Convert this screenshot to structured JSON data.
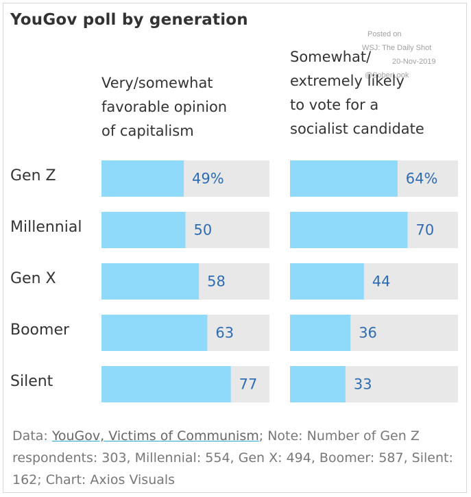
{
  "header": {
    "title": "YouGov poll by generation"
  },
  "watermark": {
    "line1": "Posted on",
    "line2": "WSJ: The Daily Shot",
    "line3": "20-Nov-2019",
    "line4": "@SoberLook"
  },
  "chart_data": {
    "type": "bar",
    "orientation": "horizontal",
    "categories": [
      "Gen Z",
      "Millennial",
      "Gen X",
      "Boomer",
      "Silent"
    ],
    "xlim": [
      0,
      100
    ],
    "series": [
      {
        "name": "Very/somewhat favorable opinion of capitalism",
        "title_lines": [
          "Very/somewhat",
          "favorable opinion",
          "of capitalism"
        ],
        "values": [
          49,
          50,
          58,
          63,
          77
        ],
        "labels": [
          "49%",
          "50",
          "58",
          "63",
          "77"
        ]
      },
      {
        "name": "Somewhat/ extremely likely to vote for a socialist candidate",
        "title_lines": [
          "Somewhat/",
          "extremely likely",
          "to vote for a",
          "socialist candidate"
        ],
        "values": [
          64,
          70,
          44,
          36,
          33
        ],
        "labels": [
          "64%",
          "70",
          "44",
          "36",
          "33"
        ]
      }
    ],
    "colors": {
      "bar": "#8fd9fb",
      "track": "#e8e8e8",
      "label": "#2e6db4"
    }
  },
  "footer": {
    "prefix": "Data: ",
    "link_text": "YouGov, Victims of Communism",
    "rest": "; Note: Number of Gen Z respondents: 303, Millennial: 554, Gen X: 494, Boomer: 587, Silent: 162; Chart: Axios Visuals"
  }
}
